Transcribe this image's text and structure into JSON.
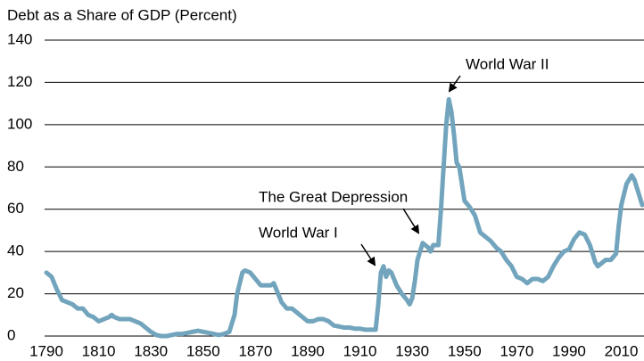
{
  "chart_data": {
    "type": "line",
    "title": "Debt as a Share of GDP (Percent)",
    "annotations": [
      "World War II",
      "The Great Depression",
      "World War I"
    ],
    "color": "#72a5bd",
    "x": [
      1790,
      1792,
      1794,
      1796,
      1798,
      1800,
      1802,
      1804,
      1806,
      1808,
      1810,
      1812,
      1814,
      1815,
      1816,
      1818,
      1820,
      1822,
      1824,
      1826,
      1828,
      1830,
      1832,
      1834,
      1836,
      1838,
      1840,
      1842,
      1844,
      1846,
      1848,
      1850,
      1852,
      1854,
      1856,
      1858,
      1860,
      1862,
      1863,
      1864,
      1865,
      1866,
      1868,
      1870,
      1872,
      1874,
      1876,
      1877,
      1878,
      1880,
      1882,
      1884,
      1886,
      1888,
      1890,
      1892,
      1894,
      1896,
      1898,
      1900,
      1902,
      1904,
      1906,
      1908,
      1910,
      1912,
      1914,
      1916,
      1917,
      1918,
      1919,
      1920,
      1921,
      1922,
      1924,
      1926,
      1928,
      1929,
      1930,
      1931,
      1932,
      1933,
      1934,
      1936,
      1937,
      1938,
      1940,
      1941,
      1942,
      1943,
      1944,
      1945,
      1946,
      1947,
      1948,
      1950,
      1952,
      1954,
      1956,
      1957,
      1958,
      1960,
      1962,
      1964,
      1966,
      1968,
      1970,
      1972,
      1974,
      1976,
      1978,
      1980,
      1982,
      1984,
      1986,
      1988,
      1990,
      1992,
      1994,
      1996,
      1998,
      2000,
      2001,
      2002,
      2004,
      2006,
      2008,
      2009,
      2010,
      2012,
      2014,
      2015,
      2016,
      2018
    ],
    "values": [
      30,
      28,
      22,
      17,
      16,
      15,
      13,
      13,
      10,
      9,
      7,
      8,
      9,
      10,
      9,
      8,
      8,
      8,
      7,
      6,
      4,
      2,
      0.5,
      0,
      0,
      0.5,
      1,
      1,
      1.5,
      2,
      2.5,
      2,
      1.5,
      1,
      0.5,
      1,
      2,
      10,
      20,
      25,
      30,
      31,
      30,
      27,
      24,
      24,
      24,
      25,
      22,
      16,
      13,
      13,
      11,
      9,
      7,
      7,
      8,
      8,
      7,
      5,
      4.5,
      4,
      4,
      3.5,
      3.5,
      3,
      3,
      3,
      15,
      30,
      33,
      28,
      31,
      30,
      24,
      20,
      17,
      15,
      18,
      26,
      36,
      40,
      44,
      42,
      40,
      43,
      43,
      60,
      80,
      100,
      112,
      106,
      95,
      82,
      80,
      64,
      61,
      57,
      49,
      48,
      47,
      45,
      42,
      40,
      36,
      33,
      28,
      27,
      25,
      27,
      27,
      26,
      28,
      33,
      37,
      40,
      41,
      46,
      49,
      48,
      43,
      35,
      33,
      34,
      36,
      36,
      39,
      52,
      62,
      72,
      76,
      74,
      70,
      62
    ],
    "xlim": [
      1790,
      2018
    ],
    "xticks": [
      1790,
      1810,
      1830,
      1850,
      1870,
      1890,
      1910,
      1930,
      1950,
      1970,
      1990,
      2010
    ],
    "ylim": [
      0,
      140
    ],
    "yticks": [
      0,
      20,
      40,
      60,
      80,
      100,
      120,
      140
    ],
    "grid": true
  }
}
